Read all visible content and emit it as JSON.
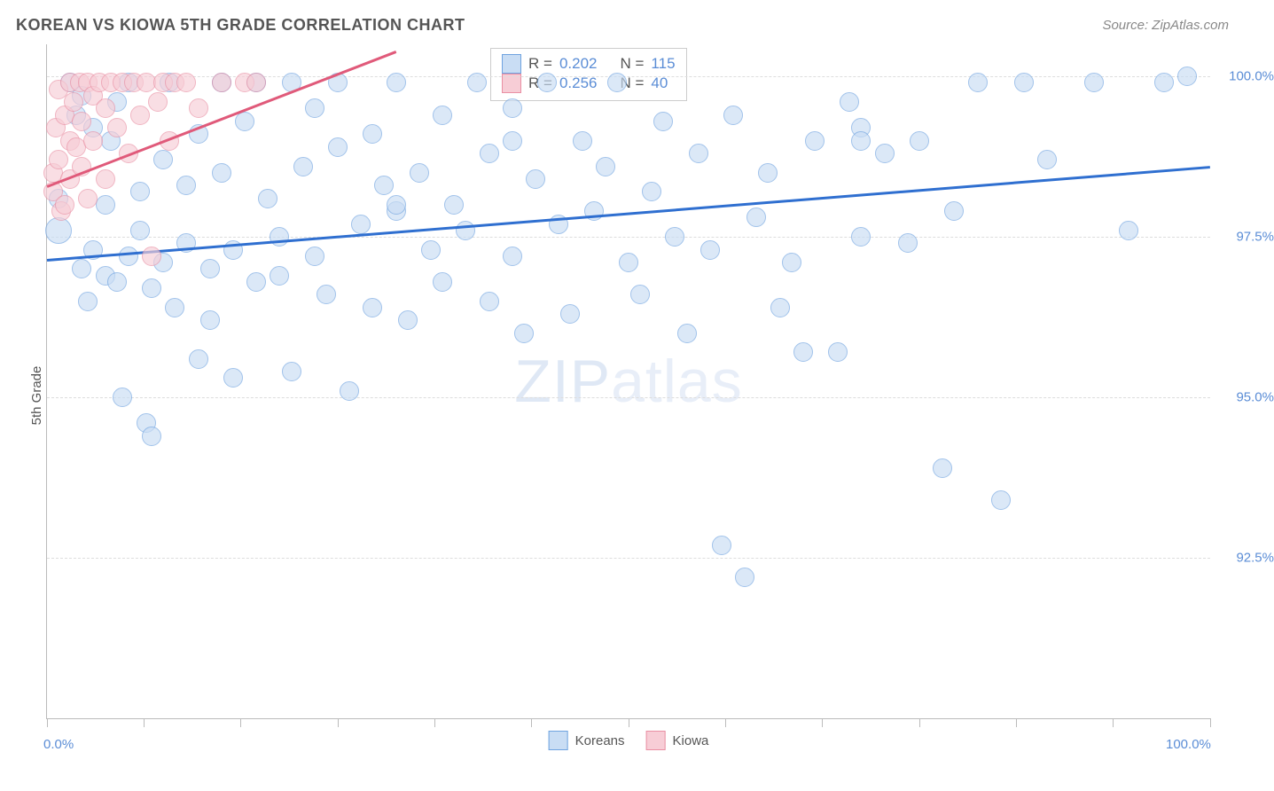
{
  "title": "KOREAN VS KIOWA 5TH GRADE CORRELATION CHART",
  "source": "Source: ZipAtlas.com",
  "ylabel": "5th Grade",
  "watermark_left": "ZIP",
  "watermark_right": "atlas",
  "chart": {
    "type": "scatter",
    "xlim": [
      0,
      100
    ],
    "ylim": [
      90,
      100.5
    ],
    "background_color": "#ffffff",
    "grid_color": "#e0e0e0",
    "yticks": [
      {
        "v": 92.5,
        "label": "92.5%"
      },
      {
        "v": 95.0,
        "label": "95.0%"
      },
      {
        "v": 97.5,
        "label": "97.5%"
      },
      {
        "v": 100.0,
        "label": "100.0%"
      }
    ],
    "xticks_minor": [
      0,
      8.3,
      16.6,
      25,
      33.3,
      41.6,
      50,
      58.3,
      66.6,
      75,
      83.3,
      91.6,
      100
    ],
    "xlabels": [
      {
        "v": 0,
        "label": "0.0%"
      },
      {
        "v": 100,
        "label": "100.0%"
      }
    ],
    "series": [
      {
        "name": "Koreans",
        "fill": "#c9ddf4",
        "fill_opacity": 0.65,
        "stroke": "#6fa3e0",
        "r_base": 10,
        "trend": {
          "x1": 0,
          "y1": 97.15,
          "x2": 100,
          "y2": 98.6,
          "color": "#2f6fd0",
          "width": 2.5
        },
        "points": [
          [
            1,
            97.6,
            14
          ],
          [
            1,
            98.1
          ],
          [
            2,
            99.9
          ],
          [
            2.5,
            99.4
          ],
          [
            3,
            97.0
          ],
          [
            3,
            99.7
          ],
          [
            3.5,
            96.5
          ],
          [
            4,
            97.3
          ],
          [
            4,
            99.2
          ],
          [
            5,
            96.9
          ],
          [
            5,
            98.0
          ],
          [
            5.5,
            99.0
          ],
          [
            6,
            96.8
          ],
          [
            6,
            99.6
          ],
          [
            6.5,
            95.0
          ],
          [
            7,
            97.2
          ],
          [
            7,
            99.9
          ],
          [
            8,
            97.6
          ],
          [
            8,
            98.2
          ],
          [
            8.5,
            94.6
          ],
          [
            9,
            96.7
          ],
          [
            9,
            94.4
          ],
          [
            10,
            98.7
          ],
          [
            10,
            97.1
          ],
          [
            10.5,
            99.9
          ],
          [
            11,
            96.4
          ],
          [
            12,
            98.3
          ],
          [
            12,
            97.4
          ],
          [
            13,
            95.6
          ],
          [
            13,
            99.1
          ],
          [
            14,
            97.0
          ],
          [
            14,
            96.2
          ],
          [
            15,
            98.5
          ],
          [
            15,
            99.9
          ],
          [
            16,
            97.3
          ],
          [
            16,
            95.3
          ],
          [
            17,
            99.3
          ],
          [
            18,
            96.8
          ],
          [
            18,
            99.9
          ],
          [
            19,
            98.1
          ],
          [
            20,
            97.5
          ],
          [
            20,
            96.9
          ],
          [
            21,
            99.9
          ],
          [
            21,
            95.4
          ],
          [
            22,
            98.6
          ],
          [
            23,
            97.2
          ],
          [
            23,
            99.5
          ],
          [
            24,
            96.6
          ],
          [
            25,
            98.9
          ],
          [
            25,
            99.9
          ],
          [
            26,
            95.1
          ],
          [
            27,
            97.7
          ],
          [
            28,
            96.4
          ],
          [
            28,
            99.1
          ],
          [
            29,
            98.3
          ],
          [
            30,
            97.9
          ],
          [
            30,
            99.9
          ],
          [
            31,
            96.2
          ],
          [
            32,
            98.5
          ],
          [
            33,
            97.3
          ],
          [
            34,
            99.4
          ],
          [
            34,
            96.8
          ],
          [
            35,
            98.0
          ],
          [
            36,
            97.6
          ],
          [
            37,
            99.9
          ],
          [
            38,
            96.5
          ],
          [
            38,
            98.8
          ],
          [
            40,
            97.2
          ],
          [
            40,
            99.5
          ],
          [
            41,
            96.0
          ],
          [
            42,
            98.4
          ],
          [
            43,
            99.9
          ],
          [
            44,
            97.7
          ],
          [
            45,
            96.3
          ],
          [
            46,
            99.0
          ],
          [
            47,
            97.9
          ],
          [
            48,
            98.6
          ],
          [
            49,
            99.9
          ],
          [
            50,
            97.1
          ],
          [
            51,
            96.6
          ],
          [
            52,
            98.2
          ],
          [
            53,
            99.3
          ],
          [
            54,
            97.5
          ],
          [
            55,
            96.0
          ],
          [
            56,
            98.8
          ],
          [
            57,
            97.3
          ],
          [
            58,
            92.7
          ],
          [
            59,
            99.4
          ],
          [
            60,
            92.2
          ],
          [
            61,
            97.8
          ],
          [
            62,
            98.5
          ],
          [
            63,
            96.4
          ],
          [
            64,
            97.1
          ],
          [
            65,
            95.7
          ],
          [
            66,
            99.0
          ],
          [
            68,
            95.7
          ],
          [
            69,
            99.6
          ],
          [
            70,
            97.5
          ],
          [
            70,
            99.2
          ],
          [
            72,
            98.8
          ],
          [
            74,
            97.4
          ],
          [
            75,
            99.0
          ],
          [
            77,
            93.9
          ],
          [
            78,
            97.9
          ],
          [
            80,
            99.9
          ],
          [
            82,
            93.4
          ],
          [
            84,
            99.9
          ],
          [
            86,
            98.7
          ],
          [
            90,
            99.9
          ],
          [
            93,
            97.6
          ],
          [
            96,
            99.9
          ],
          [
            98,
            100.0
          ],
          [
            70,
            99.0
          ],
          [
            40,
            99.0
          ],
          [
            30,
            98.0
          ]
        ]
      },
      {
        "name": "Kiowa",
        "fill": "#f7cdd6",
        "fill_opacity": 0.65,
        "stroke": "#e98fa3",
        "r_base": 10,
        "trend": {
          "x1": 0,
          "y1": 98.3,
          "x2": 30,
          "y2": 100.4,
          "color": "#e05a7a",
          "width": 2.5
        },
        "points": [
          [
            0.5,
            98.5
          ],
          [
            0.5,
            98.2
          ],
          [
            0.8,
            99.2
          ],
          [
            1,
            98.7
          ],
          [
            1,
            99.8
          ],
          [
            1.2,
            97.9
          ],
          [
            1.5,
            99.4
          ],
          [
            1.5,
            98.0
          ],
          [
            2,
            99.9
          ],
          [
            2,
            99.0
          ],
          [
            2,
            98.4
          ],
          [
            2.3,
            99.6
          ],
          [
            2.5,
            98.9
          ],
          [
            2.8,
            99.9
          ],
          [
            3,
            98.6
          ],
          [
            3,
            99.3
          ],
          [
            3.5,
            99.9
          ],
          [
            3.5,
            98.1
          ],
          [
            4,
            99.7
          ],
          [
            4,
            99.0
          ],
          [
            4.5,
            99.9
          ],
          [
            5,
            98.4
          ],
          [
            5,
            99.5
          ],
          [
            5.5,
            99.9
          ],
          [
            6,
            99.2
          ],
          [
            6.5,
            99.9
          ],
          [
            7,
            98.8
          ],
          [
            7.5,
            99.9
          ],
          [
            8,
            99.4
          ],
          [
            8.5,
            99.9
          ],
          [
            9,
            97.2
          ],
          [
            9.5,
            99.6
          ],
          [
            10,
            99.9
          ],
          [
            10.5,
            99.0
          ],
          [
            11,
            99.9
          ],
          [
            12,
            99.9
          ],
          [
            13,
            99.5
          ],
          [
            15,
            99.9
          ],
          [
            17,
            99.9
          ],
          [
            18,
            99.9
          ]
        ]
      }
    ]
  },
  "stats_box": {
    "rows": [
      {
        "sw_fill": "#c9ddf4",
        "sw_stroke": "#6fa3e0",
        "r_label": "R =",
        "r": "0.202",
        "n_label": "N =",
        "n": "115"
      },
      {
        "sw_fill": "#f7cdd6",
        "sw_stroke": "#e98fa3",
        "r_label": "R =",
        "r": "0.256",
        "n_label": "N =",
        "n": "40"
      }
    ]
  },
  "legend": [
    {
      "sw_fill": "#c9ddf4",
      "sw_stroke": "#6fa3e0",
      "label": "Koreans"
    },
    {
      "sw_fill": "#f7cdd6",
      "sw_stroke": "#e98fa3",
      "label": "Kiowa"
    }
  ]
}
